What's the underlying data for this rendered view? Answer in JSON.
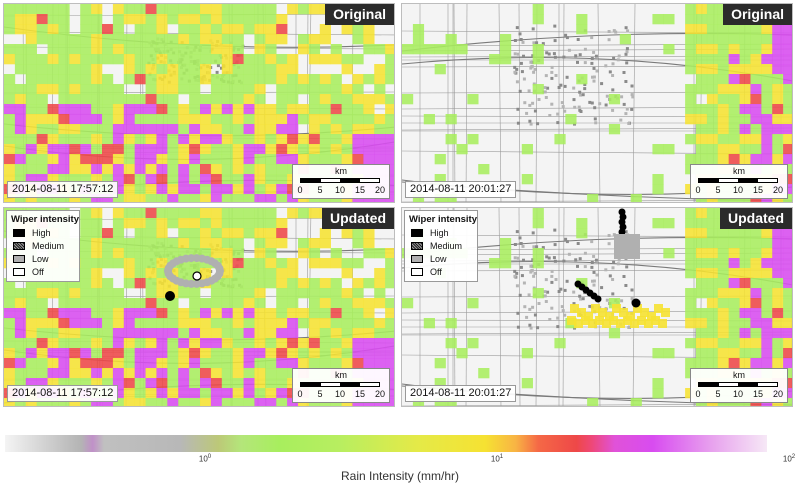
{
  "panels": {
    "tl": {
      "badge": "Original",
      "timestamp": "2014-08-11 17:57:12"
    },
    "tr": {
      "badge": "Original",
      "timestamp": "2014-08-11 20:01:27"
    },
    "bl": {
      "badge": "Updated",
      "timestamp": "2014-08-11 17:57:12"
    },
    "br": {
      "badge": "Updated",
      "timestamp": "2014-08-11 20:01:27"
    }
  },
  "scale_bar": {
    "unit": "km",
    "ticks": [
      "0",
      "5",
      "10",
      "15",
      "20"
    ]
  },
  "legend": {
    "title": "Wiper intensity",
    "items": [
      {
        "label": "High"
      },
      {
        "label": "Medium"
      },
      {
        "label": "Low"
      },
      {
        "label": "Off"
      }
    ]
  },
  "colorbar": {
    "label": "Rain Intensity (mm/hr)",
    "ticks": [
      {
        "base": "10",
        "exp": "0"
      },
      {
        "base": "10",
        "exp": "1"
      },
      {
        "base": "10",
        "exp": "2"
      }
    ]
  },
  "colors": {
    "high": "#000000",
    "low": "#b0b0b0",
    "off": "#ffffff",
    "rain_light": "#a8ee5e",
    "rain_moderate": "#f6e232",
    "rain_heavy": "#ee4848",
    "rain_extreme": "#d84cf0"
  }
}
